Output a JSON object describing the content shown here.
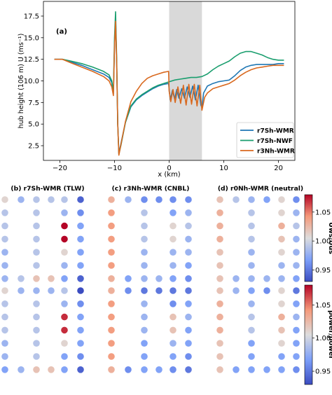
{
  "chart_data": [
    {
      "panel": "(a)",
      "type": "line",
      "xlabel": "x (km)",
      "ylabel": "hub height (106 m) U (ms⁻¹)",
      "xlim": [
        -23,
        23
      ],
      "ylim": [
        0.8,
        19.2
      ],
      "xticks": [
        -20,
        -10,
        0,
        10,
        20
      ],
      "yticks": [
        2.5,
        5.0,
        7.5,
        10.0,
        12.5,
        15.0,
        17.5
      ],
      "shaded_region_x": [
        0,
        6
      ],
      "legend_position": "lower right",
      "series": [
        {
          "name": "r7Sh-WMR",
          "color": "#1f77b4",
          "points": [
            [
              -21,
              12.5
            ],
            [
              -19.5,
              12.5
            ],
            [
              -18,
              12.2
            ],
            [
              -16,
              11.8
            ],
            [
              -14,
              11.3
            ],
            [
              -12,
              10.8
            ],
            [
              -11,
              10.4
            ],
            [
              -10.5,
              9.8
            ],
            [
              -10.2,
              8.5
            ],
            [
              -10,
              14.2
            ],
            [
              -9.8,
              17.3
            ],
            [
              -9.6,
              12
            ],
            [
              -9.4,
              5
            ],
            [
              -9.2,
              1.6
            ],
            [
              -8.8,
              2.8
            ],
            [
              -8,
              5.2
            ],
            [
              -7,
              7.0
            ],
            [
              -6,
              7.8
            ],
            [
              -5,
              8.3
            ],
            [
              -4,
              8.7
            ],
            [
              -3,
              9.1
            ],
            [
              -2,
              9.4
            ],
            [
              -1,
              9.6
            ],
            [
              -0.1,
              9.7
            ],
            [
              0,
              9.0
            ],
            [
              0.2,
              7.8
            ],
            [
              0.6,
              8.9
            ],
            [
              1.0,
              7.9
            ],
            [
              1.4,
              9.0
            ],
            [
              1.8,
              8.0
            ],
            [
              2.3,
              9.1
            ],
            [
              2.8,
              8.0
            ],
            [
              3.3,
              9.3
            ],
            [
              3.8,
              8.1
            ],
            [
              4.3,
              9.4
            ],
            [
              4.8,
              7.8
            ],
            [
              5.3,
              9.5
            ],
            [
              5.8,
              7.2
            ],
            [
              6.0,
              6.9
            ],
            [
              6.3,
              8.6
            ],
            [
              7,
              9.4
            ],
            [
              8,
              9.7
            ],
            [
              9,
              9.9
            ],
            [
              10,
              10.0
            ],
            [
              11,
              10.1
            ],
            [
              12,
              10.6
            ],
            [
              13,
              11.2
            ],
            [
              14,
              11.6
            ],
            [
              15,
              11.8
            ],
            [
              16,
              11.9
            ],
            [
              17,
              11.9
            ],
            [
              18,
              11.9
            ],
            [
              19,
              11.9
            ],
            [
              20,
              12.0
            ],
            [
              21,
              12.0
            ]
          ]
        },
        {
          "name": "r7Sh-NWF",
          "color": "#1a9e6e",
          "points": [
            [
              -21,
              12.5
            ],
            [
              -19.5,
              12.5
            ],
            [
              -18,
              12.3
            ],
            [
              -16,
              12.0
            ],
            [
              -14,
              11.6
            ],
            [
              -12,
              11.1
            ],
            [
              -11,
              10.7
            ],
            [
              -10.5,
              10.0
            ],
            [
              -10.2,
              8.7
            ],
            [
              -10,
              15.0
            ],
            [
              -9.8,
              18.0
            ],
            [
              -9.6,
              12.5
            ],
            [
              -9.4,
              5
            ],
            [
              -9.2,
              1.5
            ],
            [
              -8.8,
              2.6
            ],
            [
              -8,
              5.2
            ],
            [
              -7,
              7.1
            ],
            [
              -6,
              7.9
            ],
            [
              -5,
              8.4
            ],
            [
              -4,
              8.8
            ],
            [
              -3,
              9.2
            ],
            [
              -2,
              9.5
            ],
            [
              -1,
              9.7
            ],
            [
              0,
              9.9
            ],
            [
              1,
              10.1
            ],
            [
              2,
              10.2
            ],
            [
              3,
              10.3
            ],
            [
              4,
              10.4
            ],
            [
              5,
              10.4
            ],
            [
              6,
              10.5
            ],
            [
              7,
              10.8
            ],
            [
              8,
              11.3
            ],
            [
              9,
              11.7
            ],
            [
              10,
              12.0
            ],
            [
              11,
              12.3
            ],
            [
              12,
              12.8
            ],
            [
              13,
              13.2
            ],
            [
              14,
              13.4
            ],
            [
              15,
              13.4
            ],
            [
              16,
              13.2
            ],
            [
              17,
              13.0
            ],
            [
              18,
              12.7
            ],
            [
              19,
              12.5
            ],
            [
              20,
              12.4
            ],
            [
              21,
              12.4
            ]
          ]
        },
        {
          "name": "r3Nh-WMR",
          "color": "#d9691f",
          "points": [
            [
              -21,
              12.5
            ],
            [
              -19.5,
              12.5
            ],
            [
              -18,
              12.1
            ],
            [
              -16,
              11.6
            ],
            [
              -14,
              11.1
            ],
            [
              -12,
              10.5
            ],
            [
              -11,
              10.0
            ],
            [
              -10.5,
              9.3
            ],
            [
              -10.2,
              8.3
            ],
            [
              -10,
              14.0
            ],
            [
              -9.8,
              16.9
            ],
            [
              -9.6,
              12
            ],
            [
              -9.4,
              5
            ],
            [
              -9.2,
              1.4
            ],
            [
              -8.8,
              2.7
            ],
            [
              -8,
              5.3
            ],
            [
              -7,
              7.6
            ],
            [
              -6,
              8.8
            ],
            [
              -5,
              9.7
            ],
            [
              -4,
              10.3
            ],
            [
              -3,
              10.6
            ],
            [
              -2,
              10.8
            ],
            [
              -1,
              11.0
            ],
            [
              -0.1,
              11.1
            ],
            [
              0,
              8.8
            ],
            [
              0.3,
              7.6
            ],
            [
              0.7,
              9.0
            ],
            [
              1.1,
              7.5
            ],
            [
              1.6,
              9.3
            ],
            [
              2.1,
              7.4
            ],
            [
              2.6,
              9.5
            ],
            [
              3.1,
              7.2
            ],
            [
              3.6,
              9.6
            ],
            [
              4.1,
              7.3
            ],
            [
              4.6,
              9.6
            ],
            [
              5.1,
              7.1
            ],
            [
              5.6,
              9.5
            ],
            [
              6.0,
              6.6
            ],
            [
              6.5,
              8.1
            ],
            [
              7,
              8.6
            ],
            [
              8,
              9.1
            ],
            [
              9,
              9.3
            ],
            [
              10,
              9.5
            ],
            [
              11,
              9.7
            ],
            [
              12,
              10.1
            ],
            [
              13,
              10.6
            ],
            [
              14,
              11.0
            ],
            [
              15,
              11.3
            ],
            [
              16,
              11.5
            ],
            [
              17,
              11.6
            ],
            [
              18,
              11.7
            ],
            [
              19,
              11.8
            ],
            [
              20,
              11.8
            ],
            [
              21,
              11.8
            ]
          ]
        }
      ]
    },
    {
      "type": "heatmap",
      "row_label": "Uws/Uus",
      "colorbar_label": "U_ws/U_us",
      "colorbar_range": [
        0.93,
        1.08
      ],
      "colorbar_ticks": [
        "0.95",
        "1.00",
        "1.05"
      ],
      "cmap": "coolwarm",
      "panels": [
        {
          "title": "(b) r7Sh-WMR (TLW)",
          "columns": 6,
          "rows": [
            [
              1.01,
              0.98,
              0.99,
              0.99,
              0.99,
              0.94
            ],
            [
              0.99,
              null,
              0.99,
              null,
              0.98,
              0.96
            ],
            [
              0.99,
              null,
              0.99,
              null,
              1.08,
              0.97
            ],
            [
              0.99,
              null,
              0.99,
              null,
              1.08,
              0.97
            ],
            [
              0.98,
              null,
              0.99,
              null,
              1.01,
              0.97
            ],
            [
              0.98,
              null,
              0.99,
              null,
              0.98,
              0.97
            ],
            [
              0.98,
              0.99,
              1.02,
              1.02,
              0.97,
              0.94
            ]
          ]
        },
        {
          "title": "(c) r3Nh-WMR (CNBL)",
          "columns": 6,
          "rows": [
            [
              1.03,
              0.98,
              0.96,
              0.96,
              0.96,
              0.96
            ],
            [
              1.04,
              null,
              0.99,
              null,
              0.97,
              0.98
            ],
            [
              1.04,
              null,
              0.99,
              null,
              1.01,
              0.99
            ],
            [
              1.04,
              null,
              0.99,
              null,
              1.01,
              0.98
            ],
            [
              1.04,
              null,
              0.98,
              null,
              0.98,
              0.98
            ],
            [
              1.04,
              null,
              0.98,
              null,
              0.98,
              0.97
            ],
            [
              1.03,
              0.97,
              0.98,
              0.98,
              0.97,
              0.96
            ]
          ]
        },
        {
          "title": "(d) r0Nh-WMR (neutral)",
          "columns": 6,
          "rows": [
            [
              1.02,
              0.99,
              0.98,
              0.97,
              1.01,
              0.96
            ],
            [
              1.03,
              null,
              0.99,
              null,
              1.01,
              0.98
            ],
            [
              1.03,
              null,
              0.99,
              null,
              1.03,
              0.99
            ],
            [
              1.03,
              null,
              0.99,
              null,
              1.02,
              0.98
            ],
            [
              1.02,
              null,
              0.98,
              null,
              1.01,
              0.98
            ],
            [
              1.02,
              null,
              0.98,
              null,
              0.98,
              0.98
            ],
            [
              1.02,
              0.98,
              0.98,
              0.98,
              0.98,
              0.97
            ]
          ]
        }
      ]
    },
    {
      "type": "heatmap",
      "row_label": "power/power",
      "colorbar_label": "power/power",
      "colorbar_range": [
        0.93,
        1.08
      ],
      "colorbar_ticks": [
        "0.95",
        "1.00",
        "1.05"
      ],
      "cmap": "coolwarm",
      "panels": [
        {
          "columns": 6,
          "rows": [
            [
              1.01,
              0.98,
              0.98,
              0.98,
              0.99,
              0.93
            ],
            [
              0.99,
              null,
              0.99,
              null,
              0.98,
              0.96
            ],
            [
              0.99,
              null,
              0.99,
              null,
              1.07,
              0.97
            ],
            [
              0.99,
              null,
              0.99,
              null,
              1.07,
              0.97
            ],
            [
              0.98,
              null,
              0.99,
              null,
              1.01,
              0.97
            ],
            [
              0.98,
              null,
              0.99,
              null,
              0.97,
              0.96
            ],
            [
              0.97,
              0.98,
              1.02,
              1.02,
              0.97,
              0.94
            ]
          ]
        },
        {
          "columns": 6,
          "rows": [
            [
              1.03,
              0.96,
              0.95,
              0.95,
              0.95,
              0.95
            ],
            [
              1.04,
              null,
              0.98,
              null,
              0.96,
              0.97
            ],
            [
              1.04,
              null,
              0.98,
              null,
              1.02,
              0.98
            ],
            [
              1.04,
              null,
              0.98,
              null,
              1.02,
              0.97
            ],
            [
              1.04,
              null,
              0.97,
              null,
              0.98,
              0.97
            ],
            [
              1.04,
              null,
              0.97,
              null,
              0.97,
              0.96
            ],
            [
              1.03,
              0.96,
              0.97,
              0.97,
              0.96,
              0.95
            ]
          ]
        },
        {
          "columns": 6,
          "rows": [
            [
              1.02,
              0.98,
              0.97,
              0.96,
              1.01,
              0.95
            ],
            [
              1.03,
              null,
              0.98,
              null,
              1.01,
              0.97
            ],
            [
              1.03,
              null,
              0.99,
              null,
              1.03,
              0.98
            ],
            [
              1.03,
              null,
              0.99,
              null,
              1.02,
              0.97
            ],
            [
              1.02,
              null,
              0.97,
              null,
              1.01,
              0.97
            ],
            [
              1.02,
              null,
              0.97,
              null,
              0.97,
              0.97
            ],
            [
              1.02,
              0.97,
              0.97,
              0.97,
              0.97,
              0.96
            ]
          ]
        }
      ]
    }
  ]
}
